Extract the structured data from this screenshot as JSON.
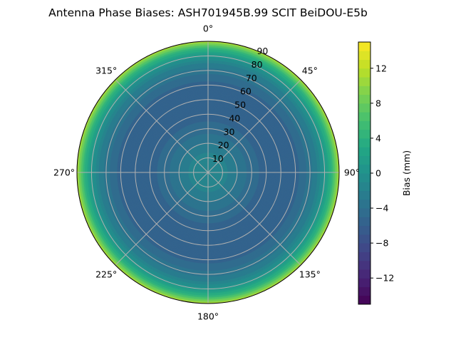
{
  "chart_data": {
    "type": "heatmap",
    "projection": "polar",
    "title": "Antenna Phase Biases: ASH701945B.99   SCIT BeiDOU-E5b",
    "theta_direction": "clockwise",
    "theta_zero": "north",
    "theta_ticks": [
      "0°",
      "45°",
      "90°",
      "135°",
      "180°",
      "225°",
      "270°",
      "315°"
    ],
    "theta_tick_values": [
      0,
      45,
      90,
      135,
      180,
      225,
      270,
      315
    ],
    "r_ticks": [
      "10",
      "20",
      "30",
      "40",
      "50",
      "60",
      "70",
      "80",
      "90"
    ],
    "r_tick_values": [
      10,
      20,
      30,
      40,
      50,
      60,
      70,
      80,
      90
    ],
    "rlim": [
      0,
      90
    ],
    "grid": true,
    "colormap": "viridis",
    "colorbar": {
      "label": "Bias (mm)",
      "range": [
        -15,
        15
      ],
      "ticks": [
        "−12",
        "−8",
        "−4",
        "0",
        "4",
        "8",
        "12"
      ],
      "tick_values": [
        -12,
        -8,
        -4,
        0,
        4,
        8,
        12
      ]
    },
    "radial_profile": {
      "r": [
        0,
        10,
        20,
        30,
        40,
        50,
        60,
        70,
        75,
        80,
        85,
        88,
        90
      ],
      "bias_mm": [
        -1,
        -1.5,
        -3,
        -4.5,
        -5.5,
        -6,
        -5.5,
        -3.5,
        -2,
        0.5,
        4.5,
        8.5,
        12
      ]
    }
  }
}
